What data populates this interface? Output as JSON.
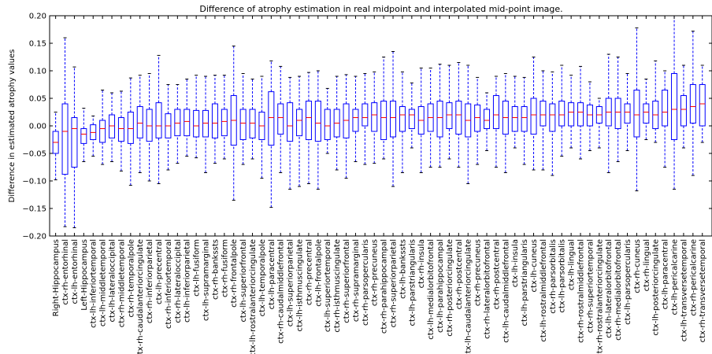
{
  "chart_data": {
    "type": "boxplot",
    "title": "Difference of atrophy estimation in real midpoint and interpolated mid-point image.",
    "xlabel": "",
    "ylabel": "Difference in estimated atrophy values",
    "ylim": [
      -0.2,
      0.2
    ],
    "yticks": [
      -0.2,
      -0.15,
      -0.1,
      -0.05,
      0.0,
      0.05,
      0.1,
      0.15,
      0.2
    ],
    "ytick_labels": [
      "−0.20",
      "−0.15",
      "−0.10",
      "−0.05",
      "0.00",
      "0.05",
      "0.10",
      "0.15",
      "0.20"
    ],
    "grid": false,
    "colors": {
      "box": "#0000ff",
      "whisker": "#0000ff",
      "median": "#ff0000",
      "axis": "#000000"
    },
    "categories": [
      "Right-Hippocampus",
      "ctx-rh-entorhinal",
      "ctx-lh-entorhinal",
      "Left-Hippocampus",
      "ctx-lh-inferiortemporal",
      "ctx-lh-middletemporal",
      "ctx-lh-lateraloccipital",
      "ctx-rh-middletemporal",
      "ctx-rh-temporalpole",
      "ctx-rh-caudalanteriorcingulate",
      "ctx-rh-inferiorparietal",
      "ctx-lh-precentral",
      "ctx-rh-inferiortemporal",
      "ctx-rh-lateraloccipital",
      "ctx-lh-inferiorparietal",
      "ctx-lh-fusiform",
      "ctx-lh-supramarginal",
      "ctx-rh-bankssts",
      "ctx-rh-fusiform",
      "ctx-rh-frontalpole",
      "ctx-lh-superiorfrontal",
      "ctx-lh-rostralanteriorcingulate",
      "ctx-lh-temporalpole",
      "ctx-lh-paracentral",
      "ctx-rh-caudalmiddlefrontal",
      "ctx-lh-superiorparietal",
      "ctx-lh-isthmuscingulate",
      "ctx-rh-precentral",
      "ctx-lh-frontalpole",
      "ctx-lh-superiortemporal",
      "ctx-rh-isthmuscingulate",
      "ctx-rh-superiorfrontal",
      "ctx-rh-supramarginal",
      "ctx-rh-parsopercularis",
      "ctx-rh-precuneus",
      "ctx-rh-parahippocampal",
      "ctx-rh-superiorparietal",
      "ctx-lh-bankssts",
      "ctx-lh-parstriangularis",
      "ctx-rh-insula",
      "ctx-lh-medialorbitofrontal",
      "ctx-lh-parahippocampal",
      "ctx-rh-posteriorcingulate",
      "ctx-rh-postcentral",
      "ctx-lh-caudalanteriorcingulate",
      "ctx-rh-precuneus",
      "ctx-rh-lateralorbitofrontal",
      "ctx-rh-postcentral",
      "ctx-lh-caudalmiddlefrontal",
      "ctx-lh-insula",
      "ctx-lh-parstriangularis",
      "ctx-lh-cuneus",
      "ctx-lh-rostralmiddlefrontal",
      "ctx-rh-parsorbitalis",
      "ctx-lh-parsorbitalis",
      "ctx-lh-lingual",
      "ctx-rh-rostralmiddlefrontal",
      "ctx-rh-superiortemporal",
      "ctx-rh-rostralanteriorcingulate",
      "ctx-lh-lateralorbitofrontal",
      "ctx-rh-medialorbitofrontal",
      "ctx-lh-parsopercularis",
      "ctx-rh-cuneus",
      "ctx-rh-lingual",
      "ctx-lh-posteriorcingulate",
      "ctx-lh-paracentral",
      "ctx-lh-pericalcarine",
      "ctx-lh-transversetemporal",
      "ctx-rh-pericalcarine",
      "ctx-rh-transversetemporal"
    ],
    "series": [
      {
        "whislo": -0.098,
        "q1": -0.05,
        "med": -0.03,
        "q3": -0.01,
        "whishi": 0.025
      },
      {
        "whislo": -0.183,
        "q1": -0.088,
        "med": -0.01,
        "q3": 0.04,
        "whishi": 0.16
      },
      {
        "whislo": -0.185,
        "q1": -0.075,
        "med": -0.005,
        "q3": 0.015,
        "whishi": 0.107
      },
      {
        "whislo": -0.065,
        "q1": -0.032,
        "med": -0.015,
        "q3": -0.005,
        "whishi": 0.032
      },
      {
        "whislo": -0.055,
        "q1": -0.025,
        "med": -0.012,
        "q3": 0.002,
        "whishi": 0.018
      },
      {
        "whislo": -0.07,
        "q1": -0.03,
        "med": -0.005,
        "q3": 0.01,
        "whishi": 0.065
      },
      {
        "whislo": -0.065,
        "q1": -0.022,
        "med": 0.0,
        "q3": 0.02,
        "whishi": 0.06
      },
      {
        "whislo": -0.082,
        "q1": -0.028,
        "med": -0.005,
        "q3": 0.015,
        "whishi": 0.063
      },
      {
        "whislo": -0.108,
        "q1": -0.032,
        "med": -0.005,
        "q3": 0.025,
        "whishi": 0.087
      },
      {
        "whislo": -0.085,
        "q1": -0.022,
        "med": 0.005,
        "q3": 0.035,
        "whishi": 0.092
      },
      {
        "whislo": -0.1,
        "q1": -0.028,
        "med": 0.0,
        "q3": 0.03,
        "whishi": 0.095
      },
      {
        "whislo": -0.105,
        "q1": -0.022,
        "med": 0.0,
        "q3": 0.042,
        "whishi": 0.128
      },
      {
        "whislo": -0.08,
        "q1": -0.022,
        "med": 0.0,
        "q3": 0.022,
        "whishi": 0.075
      },
      {
        "whislo": -0.068,
        "q1": -0.018,
        "med": 0.005,
        "q3": 0.03,
        "whishi": 0.075
      },
      {
        "whislo": -0.055,
        "q1": -0.018,
        "med": 0.008,
        "q3": 0.03,
        "whishi": 0.085
      },
      {
        "whislo": -0.058,
        "q1": -0.02,
        "med": 0.0,
        "q3": 0.028,
        "whishi": 0.092
      },
      {
        "whislo": -0.085,
        "q1": -0.02,
        "med": 0.005,
        "q3": 0.028,
        "whishi": 0.09
      },
      {
        "whislo": -0.068,
        "q1": -0.022,
        "med": 0.005,
        "q3": 0.04,
        "whishi": 0.092
      },
      {
        "whislo": -0.06,
        "q1": -0.018,
        "med": 0.008,
        "q3": 0.03,
        "whishi": 0.092
      },
      {
        "whislo": -0.135,
        "q1": -0.035,
        "med": 0.01,
        "q3": 0.055,
        "whishi": 0.145
      },
      {
        "whislo": -0.07,
        "q1": -0.025,
        "med": 0.005,
        "q3": 0.03,
        "whishi": 0.095
      },
      {
        "whislo": -0.06,
        "q1": -0.022,
        "med": 0.005,
        "q3": 0.03,
        "whishi": 0.085
      },
      {
        "whislo": -0.095,
        "q1": -0.025,
        "med": 0.0,
        "q3": 0.025,
        "whishi": 0.09
      },
      {
        "whislo": -0.148,
        "q1": -0.035,
        "med": 0.015,
        "q3": 0.062,
        "whishi": 0.118
      },
      {
        "whislo": -0.085,
        "q1": -0.015,
        "med": 0.015,
        "q3": 0.04,
        "whishi": 0.108
      },
      {
        "whislo": -0.115,
        "q1": -0.028,
        "med": 0.0,
        "q3": 0.042,
        "whishi": 0.088
      },
      {
        "whislo": -0.11,
        "q1": -0.018,
        "med": 0.01,
        "q3": 0.03,
        "whishi": 0.09
      },
      {
        "whislo": -0.105,
        "q1": -0.025,
        "med": 0.015,
        "q3": 0.045,
        "whishi": 0.097
      },
      {
        "whislo": -0.115,
        "q1": -0.028,
        "med": 0.005,
        "q3": 0.045,
        "whishi": 0.1
      },
      {
        "whislo": -0.05,
        "q1": -0.025,
        "med": 0.0,
        "q3": 0.03,
        "whishi": 0.068
      },
      {
        "whislo": -0.08,
        "q1": -0.02,
        "med": 0.005,
        "q3": 0.03,
        "whishi": 0.09
      },
      {
        "whislo": -0.095,
        "q1": -0.022,
        "med": 0.01,
        "q3": 0.04,
        "whishi": 0.093
      },
      {
        "whislo": -0.065,
        "q1": -0.01,
        "med": 0.015,
        "q3": 0.03,
        "whishi": 0.09
      },
      {
        "whislo": -0.07,
        "q1": 0.0,
        "med": 0.015,
        "q3": 0.04,
        "whishi": 0.095
      },
      {
        "whislo": -0.068,
        "q1": -0.01,
        "med": 0.02,
        "q3": 0.042,
        "whishi": 0.098
      },
      {
        "whislo": -0.06,
        "q1": -0.025,
        "med": 0.015,
        "q3": 0.045,
        "whishi": 0.125
      },
      {
        "whislo": -0.11,
        "q1": -0.02,
        "med": 0.015,
        "q3": 0.045,
        "whishi": 0.135
      },
      {
        "whislo": -0.085,
        "q1": -0.01,
        "med": 0.02,
        "q3": 0.035,
        "whishi": 0.098
      },
      {
        "whislo": -0.04,
        "q1": -0.005,
        "med": 0.02,
        "q3": 0.03,
        "whishi": 0.078
      },
      {
        "whislo": -0.085,
        "q1": -0.015,
        "med": 0.01,
        "q3": 0.035,
        "whishi": 0.105
      },
      {
        "whislo": -0.075,
        "q1": -0.01,
        "med": 0.015,
        "q3": 0.04,
        "whishi": 0.105
      },
      {
        "whislo": -0.075,
        "q1": -0.02,
        "med": 0.015,
        "q3": 0.045,
        "whishi": 0.112
      },
      {
        "whislo": -0.06,
        "q1": -0.005,
        "med": 0.02,
        "q3": 0.042,
        "whishi": 0.11
      },
      {
        "whislo": -0.075,
        "q1": -0.015,
        "med": 0.02,
        "q3": 0.045,
        "whishi": 0.115
      },
      {
        "whislo": -0.105,
        "q1": -0.02,
        "med": 0.01,
        "q3": 0.04,
        "whishi": 0.11
      },
      {
        "whislo": -0.07,
        "q1": -0.01,
        "med": 0.015,
        "q3": 0.038,
        "whishi": 0.088
      },
      {
        "whislo": -0.045,
        "q1": -0.005,
        "med": 0.01,
        "q3": 0.03,
        "whishi": 0.06
      },
      {
        "whislo": -0.075,
        "q1": -0.005,
        "med": 0.02,
        "q3": 0.055,
        "whishi": 0.09
      },
      {
        "whislo": -0.085,
        "q1": -0.015,
        "med": 0.015,
        "q3": 0.045,
        "whishi": 0.095
      },
      {
        "whislo": -0.04,
        "q1": -0.01,
        "med": 0.015,
        "q3": 0.035,
        "whishi": 0.09
      },
      {
        "whislo": -0.07,
        "q1": -0.01,
        "med": 0.015,
        "q3": 0.035,
        "whishi": 0.088
      },
      {
        "whislo": -0.08,
        "q1": -0.015,
        "med": 0.02,
        "q3": 0.05,
        "whishi": 0.125
      },
      {
        "whislo": -0.08,
        "q1": 0.0,
        "med": 0.02,
        "q3": 0.045,
        "whishi": 0.1
      },
      {
        "whislo": -0.09,
        "q1": -0.01,
        "med": 0.02,
        "q3": 0.04,
        "whishi": 0.098
      },
      {
        "whislo": -0.055,
        "q1": 0.0,
        "med": 0.02,
        "q3": 0.045,
        "whishi": 0.11
      },
      {
        "whislo": -0.04,
        "q1": 0.0,
        "med": 0.025,
        "q3": 0.042,
        "whishi": 0.092
      },
      {
        "whislo": -0.06,
        "q1": 0.0,
        "med": 0.025,
        "q3": 0.042,
        "whishi": 0.108
      },
      {
        "whislo": -0.045,
        "q1": 0.0,
        "med": 0.02,
        "q3": 0.038,
        "whishi": 0.08
      },
      {
        "whislo": -0.04,
        "q1": 0.005,
        "med": 0.02,
        "q3": 0.035,
        "whishi": 0.05
      },
      {
        "whislo": -0.085,
        "q1": 0.0,
        "med": 0.025,
        "q3": 0.05,
        "whishi": 0.13
      },
      {
        "whislo": -0.065,
        "q1": -0.005,
        "med": 0.025,
        "q3": 0.05,
        "whishi": 0.125
      },
      {
        "whislo": -0.045,
        "q1": 0.005,
        "med": 0.025,
        "q3": 0.04,
        "whishi": 0.095
      },
      {
        "whislo": -0.118,
        "q1": -0.02,
        "med": 0.02,
        "q3": 0.065,
        "whishi": 0.178
      },
      {
        "whislo": -0.025,
        "q1": 0.005,
        "med": 0.025,
        "q3": 0.04,
        "whishi": 0.085
      },
      {
        "whislo": -0.03,
        "q1": -0.005,
        "med": 0.02,
        "q3": 0.045,
        "whishi": 0.118
      },
      {
        "whislo": -0.075,
        "q1": 0.0,
        "med": 0.025,
        "q3": 0.065,
        "whishi": 0.1
      },
      {
        "whislo": -0.115,
        "q1": -0.025,
        "med": 0.03,
        "q3": 0.095,
        "whishi": 0.2
      },
      {
        "whislo": -0.04,
        "q1": 0.0,
        "med": 0.03,
        "q3": 0.055,
        "whishi": 0.11
      },
      {
        "whislo": -0.09,
        "q1": 0.005,
        "med": 0.035,
        "q3": 0.075,
        "whishi": 0.172
      },
      {
        "whislo": -0.03,
        "q1": 0.0,
        "med": 0.04,
        "q3": 0.075,
        "whishi": 0.11
      }
    ]
  }
}
